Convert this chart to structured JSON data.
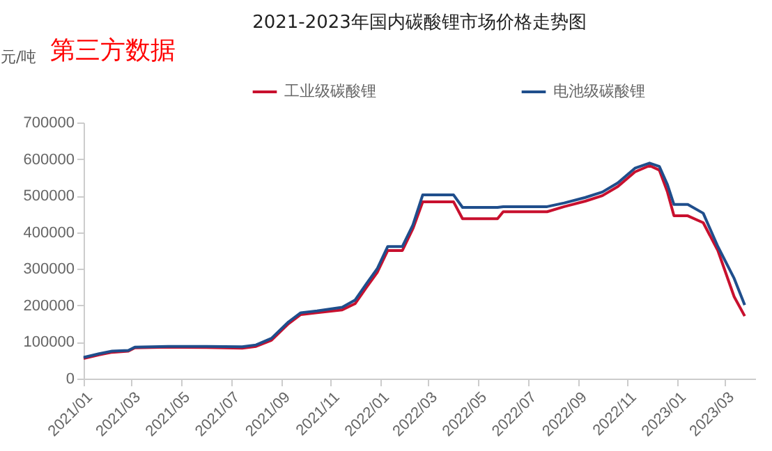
{
  "chart_data": {
    "type": "line",
    "title": "2021-2023年国内碳酸锂市场价格走势图",
    "ylabel": "元/吨",
    "annotations": [
      "第三方数据"
    ],
    "x": [
      "2021-01-01",
      "2021-01-20",
      "2021-02-05",
      "2021-02-25",
      "2021-03-05",
      "2021-04-15",
      "2021-06-01",
      "2021-07-15",
      "2021-08-01",
      "2021-08-20",
      "2021-09-10",
      "2021-09-25",
      "2021-10-15",
      "2021-11-15",
      "2021-12-01",
      "2021-12-15",
      "2021-12-28",
      "2022-01-10",
      "2022-01-28",
      "2022-02-10",
      "2022-02-22",
      "2022-04-01",
      "2022-04-12",
      "2022-05-25",
      "2022-06-01",
      "2022-07-25",
      "2022-08-15",
      "2022-09-10",
      "2022-10-01",
      "2022-10-20",
      "2022-11-10",
      "2022-11-28",
      "2022-12-10",
      "2022-12-20",
      "2022-12-28",
      "2023-01-14",
      "2023-02-02",
      "2023-02-20",
      "2023-03-12",
      "2023-03-25"
    ],
    "series": [
      {
        "name": "工业级碳酸锂",
        "color": "#c8102e",
        "values": [
          55000,
          65000,
          72000,
          75000,
          84000,
          86000,
          85000,
          83000,
          88000,
          105000,
          150000,
          175000,
          180000,
          188000,
          205000,
          250000,
          290000,
          350000,
          350000,
          410000,
          483000,
          483000,
          437000,
          437000,
          456000,
          456000,
          470000,
          485000,
          500000,
          525000,
          565000,
          582000,
          570000,
          510000,
          445000,
          445000,
          426000,
          350000,
          224000,
          171000
        ]
      },
      {
        "name": "电池级碳酸锂",
        "color": "#1f4e8c",
        "values": [
          58000,
          68000,
          75000,
          77000,
          86000,
          88000,
          88000,
          87000,
          92000,
          110000,
          155000,
          180000,
          185000,
          195000,
          215000,
          260000,
          300000,
          361000,
          361000,
          420000,
          502000,
          502000,
          468000,
          468000,
          470000,
          470000,
          480000,
          495000,
          510000,
          535000,
          575000,
          589000,
          580000,
          530000,
          476000,
          476000,
          452000,
          361000,
          274000,
          201000
        ]
      }
    ],
    "xlim": [
      "2021-01-01",
      "2023-04-07"
    ],
    "xticks": [
      {
        "value": "2021-01",
        "label": "2021/01"
      },
      {
        "value": "2021-03",
        "label": "2021/03"
      },
      {
        "value": "2021-05",
        "label": "2021/05"
      },
      {
        "value": "2021-07",
        "label": "2021/07"
      },
      {
        "value": "2021-09",
        "label": "2021/09"
      },
      {
        "value": "2021-11",
        "label": "2021/11"
      },
      {
        "value": "2022-01",
        "label": "2022/01"
      },
      {
        "value": "2022-03",
        "label": "2022/03"
      },
      {
        "value": "2022-05",
        "label": "2022/05"
      },
      {
        "value": "2022-07",
        "label": "2022/07"
      },
      {
        "value": "2022-09",
        "label": "2022/09"
      },
      {
        "value": "2022-11",
        "label": "2022/11"
      },
      {
        "value": "2023-01",
        "label": "2023/01"
      },
      {
        "value": "2023-03",
        "label": "2023/03"
      }
    ],
    "ylim": [
      0,
      700000
    ],
    "yticks": [
      0,
      100000,
      200000,
      300000,
      400000,
      500000,
      600000,
      700000
    ],
    "grid": false,
    "legend": "top",
    "marker": "none",
    "line_style": "solid"
  }
}
